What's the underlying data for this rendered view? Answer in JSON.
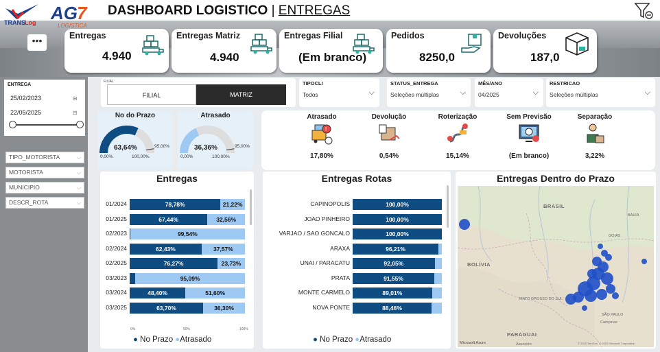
{
  "header": {
    "title": "DASHBOARD LOGISTICO",
    "separator": "|",
    "subtitle": "ENTREGAS",
    "menu": "•••"
  },
  "logo": {
    "brand1": "TRANSLog",
    "brand2": "AG7",
    "brand2_sub": "LOGISTICA"
  },
  "kpis": [
    {
      "label": "Entregas",
      "value": "4.940"
    },
    {
      "label": "Entregas Matriz",
      "value": "4.940"
    },
    {
      "label": "Entregas Filial",
      "value": "(Em branco)"
    },
    {
      "label": "Pedidos",
      "value": "8250,0"
    },
    {
      "label": "Devoluções",
      "value": "187,0"
    }
  ],
  "date_filter": {
    "title": "ENTREGA",
    "start": "25/02/2023",
    "end": "22/05/2025",
    "cal": "⊟"
  },
  "slicers": [
    "TIPO_MOTORISTA",
    "MOTORISTA",
    "MUNICIPIO",
    "DESCR_ROTA"
  ],
  "unit_toggle": {
    "caption": "FILIAL",
    "options": [
      "FILIAL",
      "MATRIZ"
    ],
    "selected": "MATRIZ"
  },
  "dropdowns": [
    {
      "header": "TIPOCLI",
      "value": "Todos"
    },
    {
      "header": "STATUS_ENTREGA",
      "value": "Seleções múltiplas"
    },
    {
      "header": "MÊS/ANO",
      "value": "04/2025"
    },
    {
      "header": "RESTRICAO",
      "value": "Seleções múltiplas"
    }
  ],
  "gauges": [
    {
      "title": "No do Prazo",
      "value": "63,64%",
      "fraction": 0.6364,
      "target": "95,00%",
      "min": "0,00%",
      "max": "100,00%"
    },
    {
      "title": "Atrasado",
      "value": "36,36%",
      "fraction": 0.3636,
      "target": "95,00%",
      "min": "0,00%",
      "max": "100,00%"
    }
  ],
  "stats": [
    {
      "label": "Atrasado",
      "value": "17,80%",
      "icon": "delayed-delivery-icon"
    },
    {
      "label": "Devolução",
      "value": "0,54%",
      "icon": "return-box-icon"
    },
    {
      "label": "Roterização",
      "value": "15,14%",
      "icon": "route-icon"
    },
    {
      "label": "Sem Previsão",
      "value": "(Em branco)",
      "icon": "no-forecast-monitor-icon"
    },
    {
      "label": "Separação",
      "value": "3,22%",
      "icon": "picking-worker-icon"
    }
  ],
  "colors": {
    "no_prazo": "#0f4c81",
    "atrasado": "#9ec9f3",
    "gauge_bg": "#e6f0f9"
  },
  "entregas_chart": {
    "title": "Entregas",
    "axis_min": "0%",
    "axis_mid": "50%",
    "axis_max": "100%"
  },
  "rotas_chart": {
    "title": "Entregas Rotas"
  },
  "map": {
    "title": "Entregas Dentro do Prazo",
    "labels": [
      "BRASIL",
      "BOLÍVIA",
      "PARAGUAI",
      "GOIÁS",
      "MATO GROSSO DO SUL",
      "BAHIA",
      "SÃO PAULO",
      "Campinas",
      "Asunción",
      "Microsoft Azure",
      "© 2025 TomTom, © 2025 Microsoft Corporation"
    ]
  },
  "legend": {
    "no_prazo": "No Prazo",
    "atrasado": "Atrasado",
    "dot": "●"
  },
  "chart_data": [
    {
      "type": "bar",
      "title": "Entregas",
      "categories": [
        "01/2024",
        "01/2025",
        "02/2023",
        "02/2024",
        "02/2025",
        "03/2023",
        "03/2024",
        "03/2025"
      ],
      "series": [
        {
          "name": "No Prazo",
          "values": [
            78.78,
            67.44,
            0.46,
            62.43,
            76.27,
            4.91,
            48.4,
            63.7
          ],
          "labels": [
            "78,78%",
            "67,44%",
            "",
            "62,43%",
            "76,27%",
            "",
            "48,40%",
            "63,70%"
          ]
        },
        {
          "name": "Atrasado",
          "values": [
            21.22,
            32.56,
            99.54,
            37.57,
            23.73,
            95.09,
            51.6,
            36.3
          ],
          "labels": [
            "21,22%",
            "32,56%",
            "99,54%",
            "37,57%",
            "23,73%",
            "95,09%",
            "51,60%",
            "36,30%"
          ]
        }
      ],
      "xlim": [
        0,
        100
      ]
    },
    {
      "type": "bar",
      "title": "Entregas Rotas",
      "categories": [
        "CAPINOPOLIS",
        "JOAO PINHEIRO",
        "VARJAO / SAO GONCALO",
        "ARAXA",
        "UNAI / PARACATU",
        "PRATA",
        "MONTE CARMELO",
        "NOVA PONTE"
      ],
      "series": [
        {
          "name": "No Prazo",
          "values": [
            100,
            100,
            100,
            96.21,
            92.05,
            91.55,
            89.01,
            88.46
          ],
          "labels": [
            "100,00%",
            "100,00%",
            "100,00%",
            "96,21%",
            "92,05%",
            "91,55%",
            "89,01%",
            "88,46%"
          ]
        },
        {
          "name": "Atrasado",
          "values": [
            0,
            0,
            0,
            3.79,
            7.95,
            8.45,
            10.99,
            11.54
          ]
        }
      ],
      "xlim": [
        0,
        100
      ]
    }
  ]
}
